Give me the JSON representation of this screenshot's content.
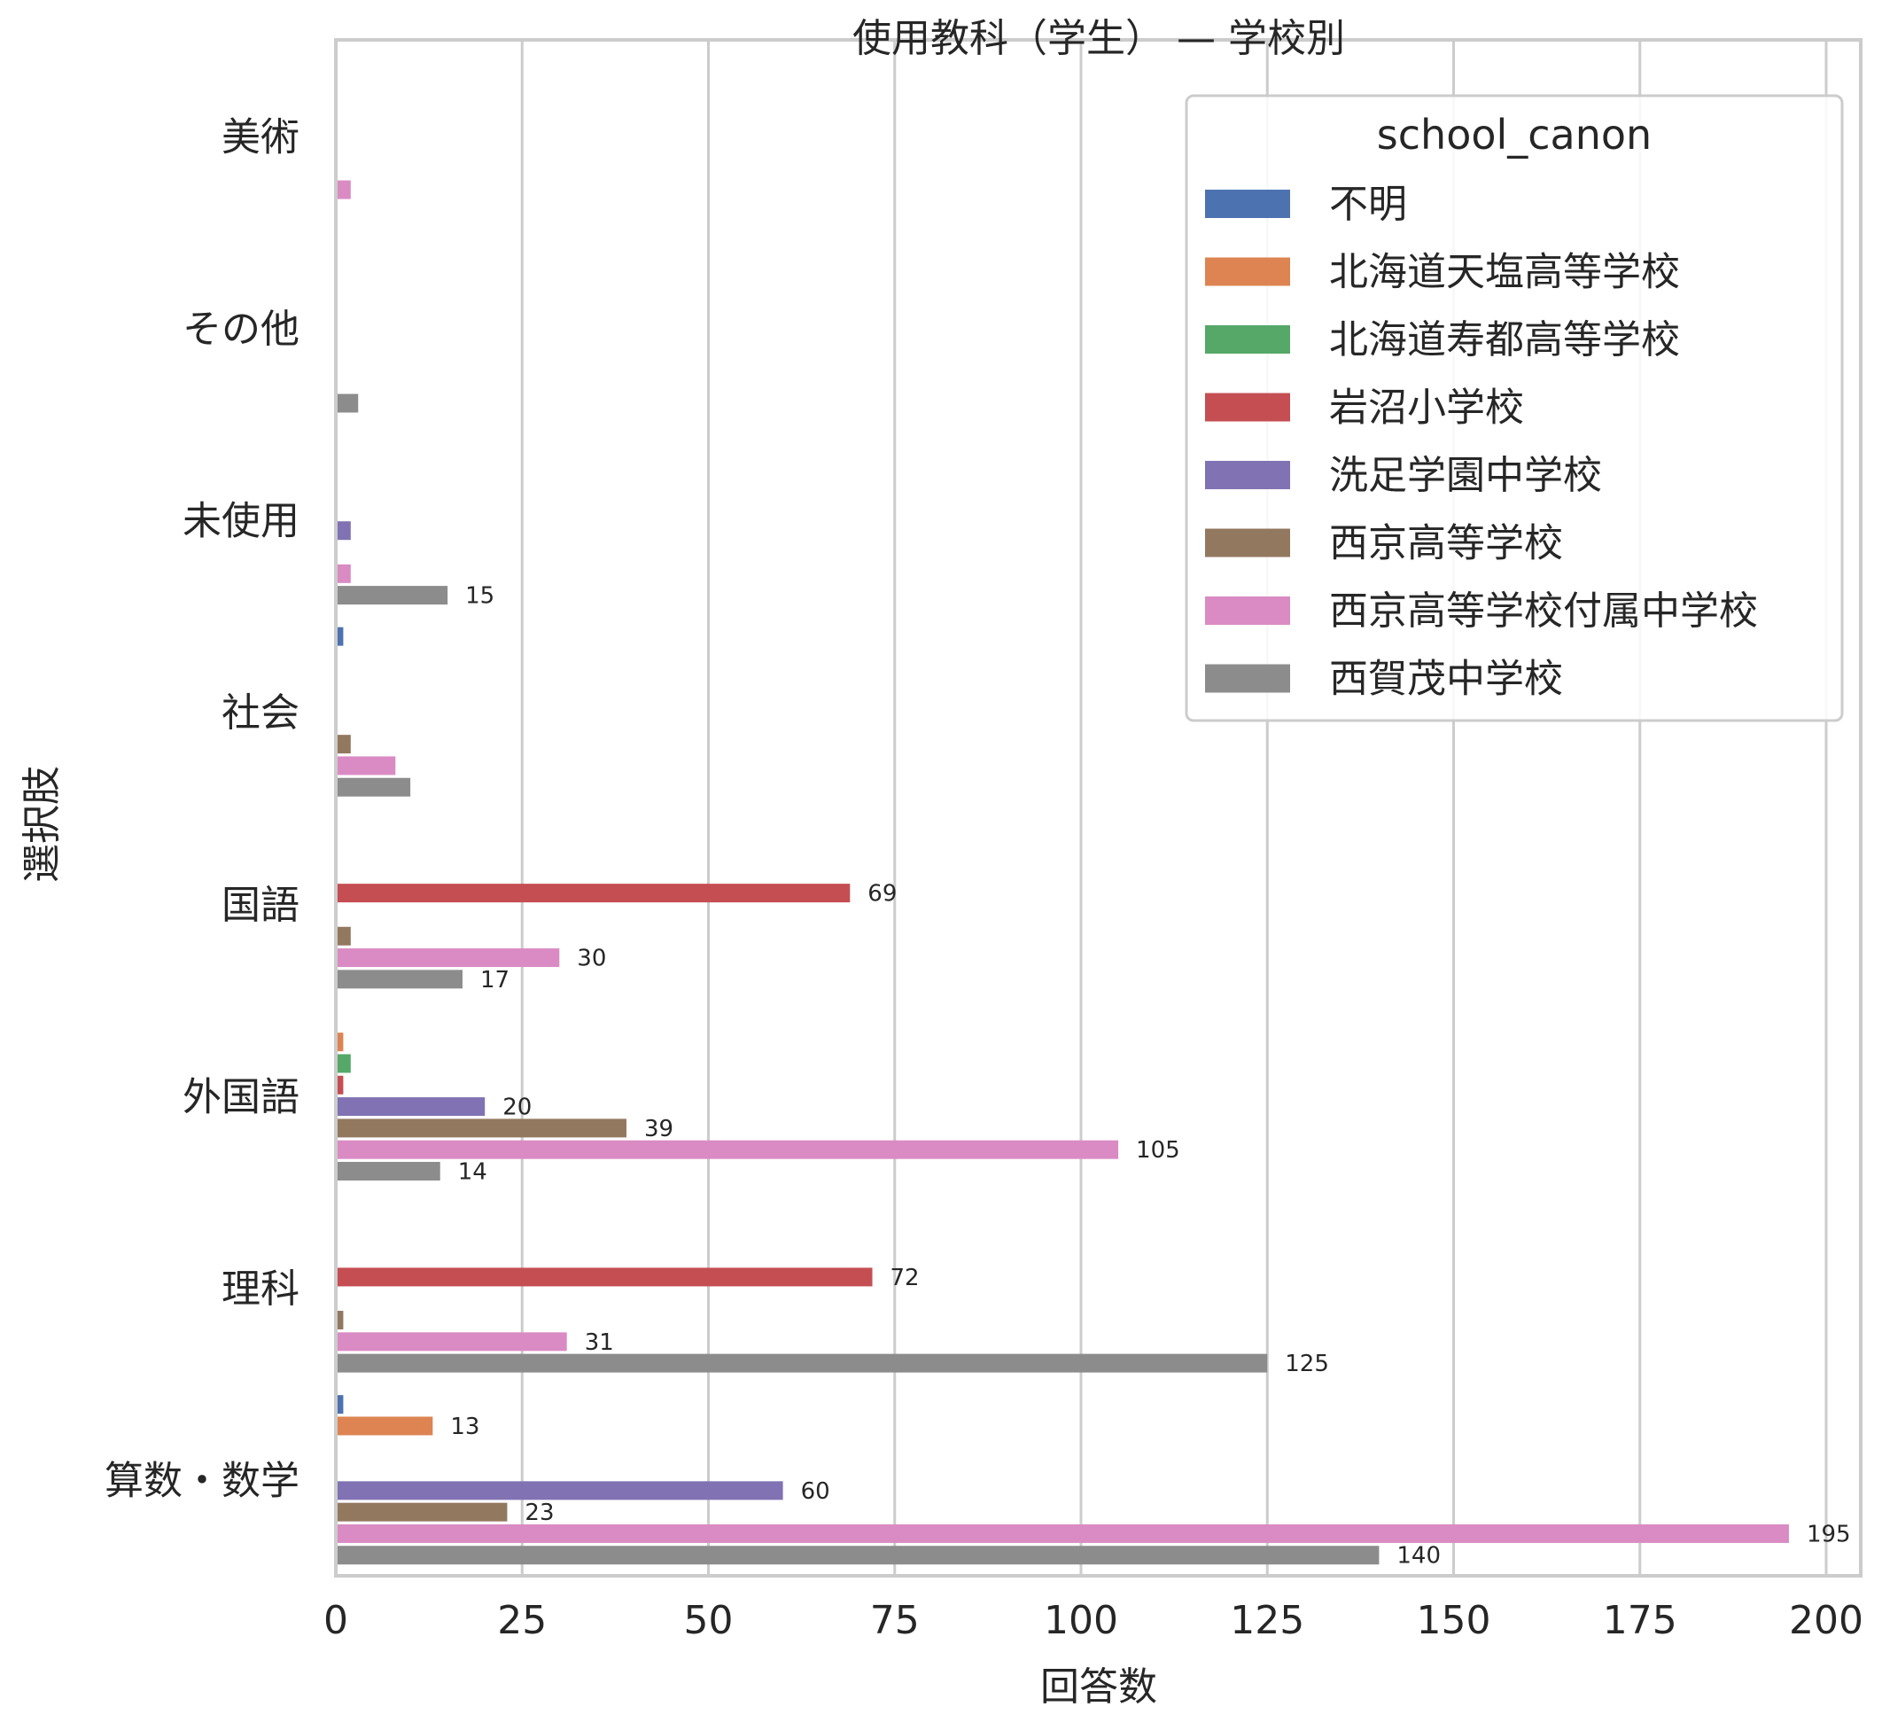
{
  "chart_data": {
    "type": "bar",
    "orientation": "horizontal",
    "title": "使用教科（学生） — 学校別",
    "xlabel": "回答数",
    "ylabel": "選択肢",
    "xlim": [
      0,
      200
    ],
    "xticks": [
      0,
      25,
      50,
      75,
      100,
      125,
      150,
      175,
      200
    ],
    "grid": "vertical",
    "legend": {
      "title": "school_canon",
      "placement": "top-right"
    },
    "label_threshold": 13,
    "categories": [
      "美術",
      "その他",
      "未使用",
      "社会",
      "国語",
      "外国語",
      "理科",
      "算数・数学"
    ],
    "series": [
      {
        "name": "不明",
        "color": "#4c72b0",
        "values": [
          0,
          0,
          0,
          1,
          0,
          0,
          0,
          1
        ]
      },
      {
        "name": "北海道天塩高等学校",
        "color": "#dd8452",
        "values": [
          0,
          0,
          0,
          0,
          0,
          1,
          0,
          13
        ]
      },
      {
        "name": "北海道寿都高等学校",
        "color": "#55a868",
        "values": [
          0,
          0,
          0,
          0,
          0,
          2,
          0,
          0
        ]
      },
      {
        "name": "岩沼小学校",
        "color": "#c44e52",
        "values": [
          0,
          0,
          0,
          0,
          69,
          1,
          72,
          0
        ]
      },
      {
        "name": "洗足学園中学校",
        "color": "#8172b3",
        "values": [
          0,
          0,
          2,
          0,
          0,
          20,
          0,
          60
        ]
      },
      {
        "name": "西京高等学校",
        "color": "#937860",
        "values": [
          0,
          0,
          0,
          2,
          2,
          39,
          1,
          23
        ]
      },
      {
        "name": "西京高等学校付属中学校",
        "color": "#da8bc3",
        "values": [
          2,
          0,
          2,
          8,
          30,
          105,
          31,
          195
        ]
      },
      {
        "name": "西賀茂中学校",
        "color": "#8c8c8c",
        "values": [
          0,
          3,
          15,
          10,
          17,
          14,
          125,
          140
        ]
      }
    ]
  }
}
